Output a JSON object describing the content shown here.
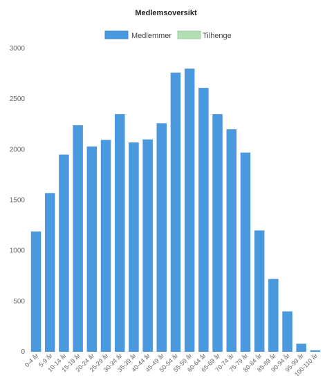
{
  "chart_data": {
    "type": "bar",
    "title": "Medlemsoversikt",
    "categories": [
      "0-4 år",
      "5-9 år",
      "10-14 år",
      "15-19 år",
      "20-24 år",
      "25-29 år",
      "30-34 år",
      "35-39 år",
      "40-44 år",
      "45-49 år",
      "50-54 år",
      "55-59 år",
      "60-64 år",
      "65-69 år",
      "70-74 år",
      "75-79 år",
      "80-84 år",
      "85-89 år",
      "90-94 år",
      "95-99 år",
      "100-110 år"
    ],
    "series": [
      {
        "name": "Medlemmer",
        "color": "#4a98de",
        "values": [
          1190,
          1570,
          1950,
          2240,
          2030,
          2095,
          2350,
          2070,
          2100,
          2260,
          2760,
          2800,
          2610,
          2350,
          2200,
          1970,
          1200,
          720,
          400,
          80,
          15
        ]
      },
      {
        "name": "Tilhenge",
        "color": "#b3ddb3",
        "values": [
          0,
          0,
          0,
          0,
          0,
          0,
          0,
          0,
          0,
          0,
          0,
          0,
          0,
          0,
          0,
          0,
          0,
          0,
          0,
          0,
          0
        ]
      }
    ],
    "ylim": [
      0,
      3000
    ],
    "yticks": [
      0,
      500,
      1000,
      1500,
      2000,
      2500,
      3000
    ],
    "grid": false,
    "legend_position": "top-center"
  }
}
